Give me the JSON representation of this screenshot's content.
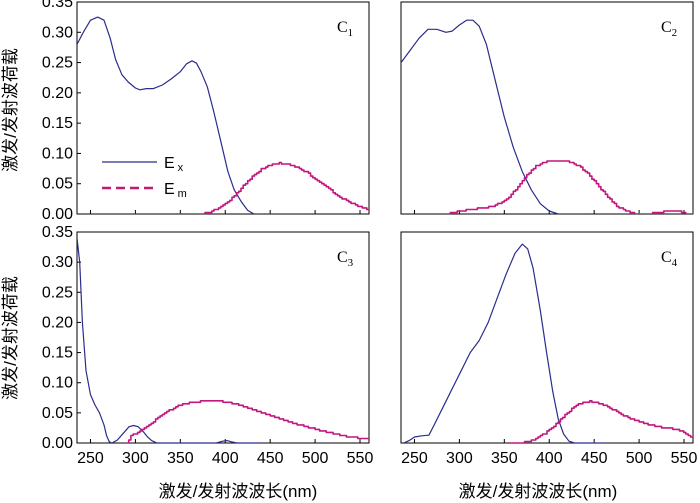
{
  "chart_data": [
    {
      "type": "line",
      "panel_label": "C1",
      "xlim": [
        235,
        560
      ],
      "ylim": [
        0,
        0.35
      ],
      "x_ticks": [
        250,
        300,
        350,
        400,
        450,
        500,
        550
      ],
      "y_ticks": [
        0.0,
        0.05,
        0.1,
        0.15,
        0.2,
        0.25,
        0.3,
        0.35
      ],
      "y_tick_labels": [
        "0.00",
        "0.05",
        "0.10",
        "0.15",
        "0.20",
        "0.25",
        "0.30",
        "0.35"
      ],
      "legend": {
        "position": "left-middle",
        "entries": [
          {
            "series": "Ex",
            "label": "E",
            "sub": "x"
          },
          {
            "series": "Em",
            "label": "E",
            "sub": "m"
          }
        ]
      },
      "series": [
        {
          "name": "Ex",
          "color": "#2a2d8c",
          "style": "solid",
          "points": [
            [
              235,
              0.28
            ],
            [
              242,
              0.3
            ],
            [
              250,
              0.32
            ],
            [
              258,
              0.325
            ],
            [
              265,
              0.32
            ],
            [
              272,
              0.29
            ],
            [
              278,
              0.255
            ],
            [
              285,
              0.23
            ],
            [
              292,
              0.218
            ],
            [
              300,
              0.208
            ],
            [
              305,
              0.205
            ],
            [
              312,
              0.207
            ],
            [
              320,
              0.207
            ],
            [
              330,
              0.213
            ],
            [
              340,
              0.223
            ],
            [
              350,
              0.235
            ],
            [
              357,
              0.248
            ],
            [
              363,
              0.253
            ],
            [
              368,
              0.249
            ],
            [
              373,
              0.235
            ],
            [
              380,
              0.21
            ],
            [
              387,
              0.17
            ],
            [
              395,
              0.12
            ],
            [
              403,
              0.07
            ],
            [
              410,
              0.04
            ],
            [
              418,
              0.02
            ],
            [
              425,
              0.006
            ],
            [
              432,
              0.0
            ],
            [
              460,
              0.0
            ],
            [
              490,
              0.0
            ]
          ]
        },
        {
          "name": "Em",
          "color": "#c2177f",
          "style": "stepped",
          "points": [
            [
              300,
              0.0
            ],
            [
              355,
              0.0
            ],
            [
              370,
              0.0
            ],
            [
              380,
              0.002
            ],
            [
              390,
              0.008
            ],
            [
              400,
              0.017
            ],
            [
              410,
              0.03
            ],
            [
              420,
              0.047
            ],
            [
              430,
              0.062
            ],
            [
              440,
              0.074
            ],
            [
              450,
              0.081
            ],
            [
              460,
              0.084
            ],
            [
              470,
              0.082
            ],
            [
              480,
              0.077
            ],
            [
              490,
              0.069
            ],
            [
              500,
              0.058
            ],
            [
              510,
              0.047
            ],
            [
              520,
              0.036
            ],
            [
              530,
              0.026
            ],
            [
              540,
              0.018
            ],
            [
              550,
              0.012
            ],
            [
              560,
              0.006
            ]
          ]
        }
      ]
    },
    {
      "type": "line",
      "panel_label": "C2",
      "xlim": [
        235,
        560
      ],
      "ylim": [
        0,
        0.35
      ],
      "x_ticks": [
        250,
        300,
        350,
        400,
        450,
        500,
        550
      ],
      "series": [
        {
          "name": "Ex",
          "color": "#2a2d8c",
          "style": "solid",
          "points": [
            [
              235,
              0.25
            ],
            [
              245,
              0.27
            ],
            [
              255,
              0.29
            ],
            [
              265,
              0.305
            ],
            [
              275,
              0.305
            ],
            [
              285,
              0.3
            ],
            [
              292,
              0.302
            ],
            [
              300,
              0.312
            ],
            [
              308,
              0.32
            ],
            [
              315,
              0.32
            ],
            [
              322,
              0.31
            ],
            [
              330,
              0.28
            ],
            [
              340,
              0.22
            ],
            [
              350,
              0.16
            ],
            [
              360,
              0.11
            ],
            [
              370,
              0.07
            ],
            [
              380,
              0.04
            ],
            [
              390,
              0.017
            ],
            [
              400,
              0.005
            ],
            [
              410,
              0.0
            ],
            [
              440,
              0.0
            ]
          ]
        },
        {
          "name": "Em",
          "color": "#c2177f",
          "style": "stepped",
          "points": [
            [
              280,
              0.0
            ],
            [
              285,
              0.0
            ],
            [
              295,
              0.003
            ],
            [
              305,
              0.006
            ],
            [
              315,
              0.008
            ],
            [
              325,
              0.01
            ],
            [
              335,
              0.012
            ],
            [
              345,
              0.018
            ],
            [
              355,
              0.028
            ],
            [
              365,
              0.045
            ],
            [
              375,
              0.064
            ],
            [
              385,
              0.079
            ],
            [
              395,
              0.086
            ],
            [
              405,
              0.088
            ],
            [
              415,
              0.088
            ],
            [
              425,
              0.085
            ],
            [
              435,
              0.077
            ],
            [
              445,
              0.063
            ],
            [
              455,
              0.045
            ],
            [
              465,
              0.028
            ],
            [
              475,
              0.013
            ],
            [
              485,
              0.005
            ],
            [
              495,
              0.001
            ],
            [
              505,
              0.0
            ],
            [
              520,
              0.002
            ],
            [
              535,
              0.006
            ],
            [
              545,
              0.005
            ],
            [
              552,
              0.001
            ],
            [
              560,
              0.0
            ]
          ]
        }
      ]
    },
    {
      "type": "line",
      "panel_label": "C3",
      "xlim": [
        235,
        560
      ],
      "ylim": [
        0,
        0.35
      ],
      "x_ticks": [
        250,
        300,
        350,
        400,
        450,
        500,
        550
      ],
      "x_tick_labels": [
        "250",
        "300",
        "350",
        "400",
        "450",
        "500",
        "550"
      ],
      "y_ticks": [
        0.0,
        0.05,
        0.1,
        0.15,
        0.2,
        0.25,
        0.3,
        0.35
      ],
      "y_tick_labels": [
        "0.00",
        "0.05",
        "0.10",
        "0.15",
        "0.20",
        "0.25",
        "0.30",
        "0.35"
      ],
      "series": [
        {
          "name": "Ex",
          "color": "#2a2d8c",
          "style": "solid",
          "points": [
            [
              235,
              0.34
            ],
            [
              238,
              0.3
            ],
            [
              241,
              0.2
            ],
            [
              245,
              0.12
            ],
            [
              250,
              0.08
            ],
            [
              255,
              0.063
            ],
            [
              260,
              0.05
            ],
            [
              265,
              0.03
            ],
            [
              268,
              0.012
            ],
            [
              271,
              0.002
            ],
            [
              274,
              0.0
            ],
            [
              280,
              0.005
            ],
            [
              287,
              0.017
            ],
            [
              293,
              0.027
            ],
            [
              298,
              0.029
            ],
            [
              303,
              0.027
            ],
            [
              308,
              0.02
            ],
            [
              313,
              0.011
            ],
            [
              318,
              0.004
            ],
            [
              324,
              0.0
            ],
            [
              390,
              0.0
            ],
            [
              397,
              0.003
            ],
            [
              402,
              0.004
            ],
            [
              407,
              0.002
            ],
            [
              413,
              0.0
            ],
            [
              440,
              0.0
            ]
          ]
        },
        {
          "name": "Em",
          "color": "#c2177f",
          "style": "stepped",
          "points": [
            [
              290,
              0.0
            ],
            [
              295,
              0.012
            ],
            [
              305,
              0.02
            ],
            [
              315,
              0.03
            ],
            [
              325,
              0.042
            ],
            [
              335,
              0.052
            ],
            [
              345,
              0.06
            ],
            [
              355,
              0.065
            ],
            [
              365,
              0.068
            ],
            [
              375,
              0.069
            ],
            [
              385,
              0.069
            ],
            [
              395,
              0.069
            ],
            [
              405,
              0.067
            ],
            [
              415,
              0.063
            ],
            [
              425,
              0.058
            ],
            [
              435,
              0.053
            ],
            [
              445,
              0.048
            ],
            [
              455,
              0.043
            ],
            [
              465,
              0.038
            ],
            [
              475,
              0.033
            ],
            [
              485,
              0.029
            ],
            [
              495,
              0.025
            ],
            [
              505,
              0.021
            ],
            [
              515,
              0.017
            ],
            [
              525,
              0.014
            ],
            [
              535,
              0.011
            ],
            [
              545,
              0.009
            ],
            [
              555,
              0.008
            ],
            [
              560,
              0.007
            ]
          ]
        }
      ]
    },
    {
      "type": "line",
      "panel_label": "C4",
      "xlim": [
        235,
        560
      ],
      "ylim": [
        0,
        0.35
      ],
      "x_ticks": [
        250,
        300,
        350,
        400,
        450,
        500,
        550
      ],
      "x_tick_labels": [
        "250",
        "300",
        "350",
        "400",
        "450",
        "500",
        "550"
      ],
      "series": [
        {
          "name": "Ex",
          "color": "#2a2d8c",
          "style": "solid",
          "points": [
            [
              238,
              0.0
            ],
            [
              244,
              0.004
            ],
            [
              250,
              0.01
            ],
            [
              258,
              0.012
            ],
            [
              266,
              0.013
            ],
            [
              272,
              0.03
            ],
            [
              282,
              0.06
            ],
            [
              292,
              0.09
            ],
            [
              302,
              0.12
            ],
            [
              312,
              0.15
            ],
            [
              322,
              0.17
            ],
            [
              332,
              0.2
            ],
            [
              342,
              0.24
            ],
            [
              352,
              0.28
            ],
            [
              362,
              0.315
            ],
            [
              370,
              0.33
            ],
            [
              376,
              0.322
            ],
            [
              382,
              0.29
            ],
            [
              390,
              0.22
            ],
            [
              397,
              0.15
            ],
            [
              404,
              0.085
            ],
            [
              410,
              0.04
            ],
            [
              416,
              0.015
            ],
            [
              422,
              0.003
            ],
            [
              428,
              0.0
            ],
            [
              460,
              0.0
            ]
          ]
        },
        {
          "name": "Em",
          "color": "#c2177f",
          "style": "stepped",
          "points": [
            [
              355,
              0.0
            ],
            [
              365,
              0.0
            ],
            [
              375,
              0.002
            ],
            [
              385,
              0.007
            ],
            [
              395,
              0.016
            ],
            [
              405,
              0.028
            ],
            [
              415,
              0.043
            ],
            [
              425,
              0.057
            ],
            [
              435,
              0.066
            ],
            [
              445,
              0.069
            ],
            [
              455,
              0.066
            ],
            [
              465,
              0.06
            ],
            [
              475,
              0.052
            ],
            [
              485,
              0.044
            ],
            [
              495,
              0.038
            ],
            [
              505,
              0.033
            ],
            [
              515,
              0.029
            ],
            [
              525,
              0.026
            ],
            [
              535,
              0.024
            ],
            [
              545,
              0.021
            ],
            [
              552,
              0.016
            ],
            [
              560,
              0.008
            ]
          ]
        }
      ]
    }
  ],
  "y_axis_title": "激发/发射波荷载",
  "x_axis_title": "激发/发射波波长(nm)"
}
